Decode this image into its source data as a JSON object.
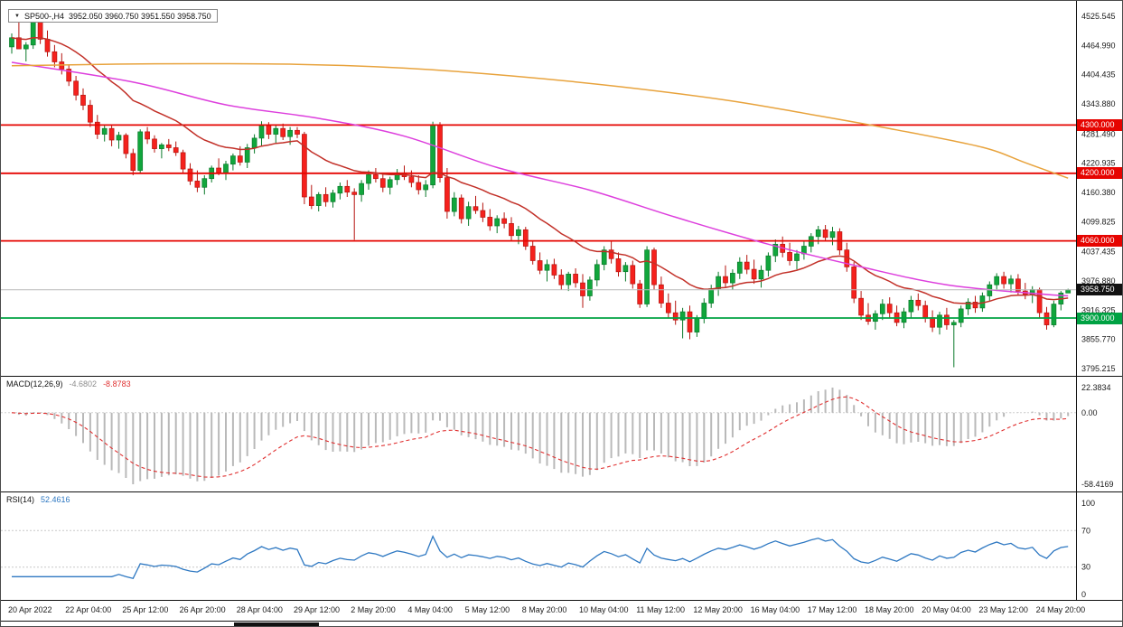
{
  "header": {
    "symbol": "SP500-,H4",
    "ohlc": "3952.050 3960.750 3951.550 3958.750"
  },
  "chart_data": {
    "type": "candlestick",
    "title": "SP500-,H4",
    "timeframe": "H4",
    "colors": {
      "up": "#11a63c",
      "up_dark": "#0a7a2a",
      "down": "#f5211d",
      "down_dark": "#b5140f",
      "grid": "#d8d8d8"
    },
    "price_axis": {
      "min": 3795.215,
      "max": 4525.545,
      "ticks": [
        "4525.545",
        "4464.990",
        "4404.435",
        "4343.880",
        "4281.490",
        "4220.935",
        "4160.380",
        "4099.825",
        "4037.435",
        "3976.880",
        "3916.325",
        "3855.770",
        "3795.215"
      ]
    },
    "x_labels": [
      {
        "i": 0,
        "label": "20 Apr 2022"
      },
      {
        "i": 8,
        "label": "22 Apr 04:00"
      },
      {
        "i": 16,
        "label": "25 Apr 12:00"
      },
      {
        "i": 24,
        "label": "26 Apr 20:00"
      },
      {
        "i": 32,
        "label": "28 Apr 04:00"
      },
      {
        "i": 40,
        "label": "29 Apr 12:00"
      },
      {
        "i": 48,
        "label": "2 May 20:00"
      },
      {
        "i": 56,
        "label": "4 May 04:00"
      },
      {
        "i": 64,
        "label": "5 May 12:00"
      },
      {
        "i": 72,
        "label": "8 May 20:00"
      },
      {
        "i": 80,
        "label": "10 May 04:00"
      },
      {
        "i": 88,
        "label": "11 May 12:00"
      },
      {
        "i": 96,
        "label": "12 May 20:00"
      },
      {
        "i": 104,
        "label": "16 May 04:00"
      },
      {
        "i": 112,
        "label": "17 May 12:00"
      },
      {
        "i": 120,
        "label": "18 May 20:00"
      },
      {
        "i": 128,
        "label": "20 May 04:00"
      },
      {
        "i": 136,
        "label": "23 May 12:00"
      },
      {
        "i": 144,
        "label": "24 May 20:00"
      }
    ],
    "candles": [
      [
        4462,
        4490,
        4448,
        4481
      ],
      [
        4481,
        4513,
        4462,
        4458
      ],
      [
        4458,
        4472,
        4432,
        4466
      ],
      [
        4466,
        4522,
        4458,
        4514
      ],
      [
        4514,
        4520,
        4468,
        4478
      ],
      [
        4478,
        4496,
        4442,
        4452
      ],
      [
        4452,
        4466,
        4420,
        4431
      ],
      [
        4431,
        4449,
        4405,
        4416
      ],
      [
        4416,
        4426,
        4381,
        4391
      ],
      [
        4391,
        4402,
        4351,
        4362
      ],
      [
        4362,
        4376,
        4331,
        4341
      ],
      [
        4341,
        4352,
        4296,
        4306
      ],
      [
        4306,
        4321,
        4271,
        4281
      ],
      [
        4281,
        4301,
        4266,
        4293
      ],
      [
        4293,
        4299,
        4256,
        4269
      ],
      [
        4269,
        4286,
        4251,
        4279
      ],
      [
        4279,
        4283,
        4231,
        4241
      ],
      [
        4241,
        4251,
        4196,
        4206
      ],
      [
        4206,
        4291,
        4201,
        4286
      ],
      [
        4286,
        4296,
        4261,
        4271
      ],
      [
        4271,
        4279,
        4243,
        4251
      ],
      [
        4251,
        4263,
        4231,
        4259
      ],
      [
        4259,
        4271,
        4246,
        4253
      ],
      [
        4253,
        4266,
        4236,
        4243
      ],
      [
        4243,
        4249,
        4201,
        4209
      ],
      [
        4209,
        4221,
        4176,
        4184
      ],
      [
        4184,
        4206,
        4161,
        4171
      ],
      [
        4171,
        4196,
        4156,
        4189
      ],
      [
        4189,
        4216,
        4181,
        4211
      ],
      [
        4211,
        4231,
        4196,
        4201
      ],
      [
        4201,
        4226,
        4186,
        4219
      ],
      [
        4219,
        4241,
        4206,
        4236
      ],
      [
        4236,
        4256,
        4216,
        4223
      ],
      [
        4223,
        4261,
        4211,
        4253
      ],
      [
        4253,
        4281,
        4241,
        4273
      ],
      [
        4273,
        4308,
        4256,
        4299
      ],
      [
        4299,
        4306,
        4271,
        4281
      ],
      [
        4281,
        4301,
        4263,
        4293
      ],
      [
        4293,
        4303,
        4269,
        4276
      ],
      [
        4276,
        4296,
        4259,
        4289
      ],
      [
        4289,
        4296,
        4273,
        4281
      ],
      [
        4281,
        4286,
        4136,
        4151
      ],
      [
        4151,
        4176,
        4126,
        4133
      ],
      [
        4133,
        4161,
        4121,
        4156
      ],
      [
        4156,
        4171,
        4131,
        4141
      ],
      [
        4141,
        4166,
        4129,
        4159
      ],
      [
        4159,
        4181,
        4146,
        4173
      ],
      [
        4173,
        4186,
        4151,
        4161
      ],
      [
        4161,
        4169,
        4062,
        4156
      ],
      [
        4156,
        4186,
        4141,
        4179
      ],
      [
        4179,
        4206,
        4166,
        4197
      ],
      [
        4197,
        4211,
        4181,
        4189
      ],
      [
        4189,
        4201,
        4161,
        4171
      ],
      [
        4171,
        4193,
        4156,
        4187
      ],
      [
        4187,
        4209,
        4176,
        4201
      ],
      [
        4201,
        4216,
        4186,
        4193
      ],
      [
        4193,
        4206,
        4171,
        4181
      ],
      [
        4181,
        4196,
        4156,
        4166
      ],
      [
        4166,
        4186,
        4151,
        4176
      ],
      [
        4176,
        4307,
        4169,
        4301
      ],
      [
        4301,
        4306,
        4181,
        4191
      ],
      [
        4191,
        4211,
        4106,
        4121
      ],
      [
        4121,
        4161,
        4111,
        4149
      ],
      [
        4149,
        4156,
        4096,
        4106
      ],
      [
        4106,
        4141,
        4091,
        4131
      ],
      [
        4131,
        4153,
        4116,
        4123
      ],
      [
        4123,
        4139,
        4099,
        4109
      ],
      [
        4109,
        4126,
        4081,
        4091
      ],
      [
        4091,
        4113,
        4076,
        4106
      ],
      [
        4106,
        4119,
        4086,
        4096
      ],
      [
        4096,
        4109,
        4061,
        4071
      ],
      [
        4071,
        4091,
        4053,
        4083
      ],
      [
        4083,
        4089,
        4041,
        4049
      ],
      [
        4049,
        4061,
        4011,
        4019
      ],
      [
        4019,
        4036,
        3991,
        3999
      ],
      [
        3999,
        4021,
        3976,
        4011
      ],
      [
        4011,
        4023,
        3981,
        3989
      ],
      [
        3989,
        4001,
        3959,
        3969
      ],
      [
        3969,
        3996,
        3956,
        3991
      ],
      [
        3991,
        4003,
        3963,
        3973
      ],
      [
        3973,
        3991,
        3921,
        3946
      ],
      [
        3946,
        3986,
        3936,
        3979
      ],
      [
        3979,
        4021,
        3966,
        4011
      ],
      [
        4011,
        4049,
        3999,
        4041
      ],
      [
        4041,
        4061,
        4013,
        4023
      ],
      [
        4023,
        4036,
        3986,
        3996
      ],
      [
        3996,
        4016,
        3976,
        4009
      ],
      [
        4009,
        4019,
        3961,
        3971
      ],
      [
        3971,
        3979,
        3921,
        3929
      ],
      [
        3929,
        4049,
        3923,
        4041
      ],
      [
        4041,
        4046,
        3959,
        3969
      ],
      [
        3969,
        3986,
        3921,
        3931
      ],
      [
        3931,
        3951,
        3901,
        3911
      ],
      [
        3911,
        3936,
        3886,
        3896
      ],
      [
        3896,
        3921,
        3858,
        3913
      ],
      [
        3913,
        3926,
        3856,
        3871
      ],
      [
        3871,
        3906,
        3861,
        3899
      ],
      [
        3899,
        3941,
        3889,
        3931
      ],
      [
        3931,
        3969,
        3921,
        3961
      ],
      [
        3961,
        3996,
        3946,
        3986
      ],
      [
        3986,
        4009,
        3963,
        3973
      ],
      [
        3973,
        4001,
        3959,
        3993
      ],
      [
        3993,
        4026,
        3981,
        4016
      ],
      [
        4016,
        4031,
        3991,
        4001
      ],
      [
        4001,
        4021,
        3971,
        3981
      ],
      [
        3981,
        4009,
        3963,
        3999
      ],
      [
        3999,
        4036,
        3986,
        4029
      ],
      [
        4029,
        4063,
        4016,
        4053
      ],
      [
        4053,
        4069,
        4026,
        4036
      ],
      [
        4036,
        4056,
        4009,
        4019
      ],
      [
        4019,
        4041,
        4001,
        4033
      ],
      [
        4033,
        4059,
        4021,
        4049
      ],
      [
        4049,
        4076,
        4036,
        4069
      ],
      [
        4069,
        4091,
        4053,
        4083
      ],
      [
        4083,
        4093,
        4059,
        4067
      ],
      [
        4067,
        4089,
        4051,
        4079
      ],
      [
        4079,
        4086,
        4031,
        4041
      ],
      [
        4041,
        4056,
        3996,
        4006
      ],
      [
        4006,
        4016,
        3931,
        3941
      ],
      [
        3941,
        3956,
        3896,
        3906
      ],
      [
        3906,
        3931,
        3886,
        3893
      ],
      [
        3893,
        3916,
        3876,
        3909
      ],
      [
        3909,
        3939,
        3896,
        3929
      ],
      [
        3929,
        3943,
        3901,
        3911
      ],
      [
        3911,
        3926,
        3883,
        3891
      ],
      [
        3891,
        3921,
        3879,
        3913
      ],
      [
        3913,
        3946,
        3901,
        3937
      ],
      [
        3937,
        3951,
        3916,
        3926
      ],
      [
        3926,
        3936,
        3891,
        3901
      ],
      [
        3901,
        3916,
        3871,
        3881
      ],
      [
        3881,
        3913,
        3866,
        3906
      ],
      [
        3906,
        3921,
        3876,
        3886
      ],
      [
        3886,
        3896,
        3798,
        3891
      ],
      [
        3891,
        3926,
        3881,
        3919
      ],
      [
        3919,
        3941,
        3906,
        3933
      ],
      [
        3933,
        3946,
        3911,
        3921
      ],
      [
        3921,
        3953,
        3913,
        3946
      ],
      [
        3946,
        3976,
        3936,
        3969
      ],
      [
        3969,
        3993,
        3956,
        3986
      ],
      [
        3986,
        3996,
        3961,
        3971
      ],
      [
        3971,
        3989,
        3953,
        3981
      ],
      [
        3981,
        3991,
        3946,
        3956
      ],
      [
        3956,
        3973,
        3939,
        3949
      ],
      [
        3949,
        3966,
        3931,
        3959
      ],
      [
        3959,
        3963,
        3901,
        3911
      ],
      [
        3911,
        3923,
        3876,
        3886
      ],
      [
        3886,
        3936,
        3881,
        3929
      ],
      [
        3929,
        3956,
        3916,
        3952
      ],
      [
        3952.05,
        3960.75,
        3951.55,
        3958.75
      ]
    ],
    "hlines": [
      {
        "price": 4300,
        "label": "4300.000",
        "color": "#e60400"
      },
      {
        "price": 4200,
        "label": "4200.000",
        "color": "#e60400"
      },
      {
        "price": 4060,
        "label": "4060.000",
        "color": "#e60400"
      },
      {
        "price": 3900,
        "label": "3900.000",
        "color": "#00a243"
      }
    ],
    "current_price": {
      "price": 3958.75,
      "label": "3958.750",
      "line_color": "#b9b9b9",
      "badge_color": "#111111"
    },
    "moving_averages": [
      {
        "name": "ma-fast-crimson",
        "color": "#c23028",
        "mode": "ema_close",
        "period": 20
      },
      {
        "name": "ma-mid-magenta",
        "color": "#dd3fdd",
        "mode": "points",
        "points": [
          [
            0,
            4430
          ],
          [
            17,
            4389
          ],
          [
            30,
            4342
          ],
          [
            43,
            4314
          ],
          [
            55,
            4277
          ],
          [
            68,
            4212
          ],
          [
            81,
            4165
          ],
          [
            93,
            4109
          ],
          [
            106,
            4053
          ],
          [
            119,
            4006
          ],
          [
            131,
            3969
          ],
          [
            144,
            3950
          ],
          [
            148,
            3946
          ]
        ]
      },
      {
        "name": "ma-slow-orange",
        "color": "#e8a33d",
        "mode": "points",
        "points": [
          [
            0,
            4423
          ],
          [
            20,
            4427
          ],
          [
            40,
            4426
          ],
          [
            55,
            4418
          ],
          [
            70,
            4402
          ],
          [
            85,
            4380
          ],
          [
            100,
            4352
          ],
          [
            112,
            4322
          ],
          [
            124,
            4290
          ],
          [
            136,
            4254
          ],
          [
            142,
            4222
          ],
          [
            148,
            4190
          ]
        ]
      }
    ],
    "macd": {
      "label": "MACD(12,26,9)",
      "fast": 12,
      "slow": 26,
      "signal": 9,
      "value_main": "-4.6802",
      "value_signal": "-8.8783",
      "axis_ticks": [
        "22.3834",
        "0.00",
        "-58.4169"
      ],
      "hist_color": "#b9b9b9",
      "signal_color": "#e03131",
      "value_main_color": "#8d8d8d"
    },
    "rsi": {
      "label": "RSI(14)",
      "period": 14,
      "value": "52.4616",
      "axis_ticks": [
        100,
        70,
        30,
        0
      ],
      "levels": [
        70,
        30
      ],
      "line_color": "#2e78c2",
      "level_color": "#c8c8c8"
    }
  }
}
